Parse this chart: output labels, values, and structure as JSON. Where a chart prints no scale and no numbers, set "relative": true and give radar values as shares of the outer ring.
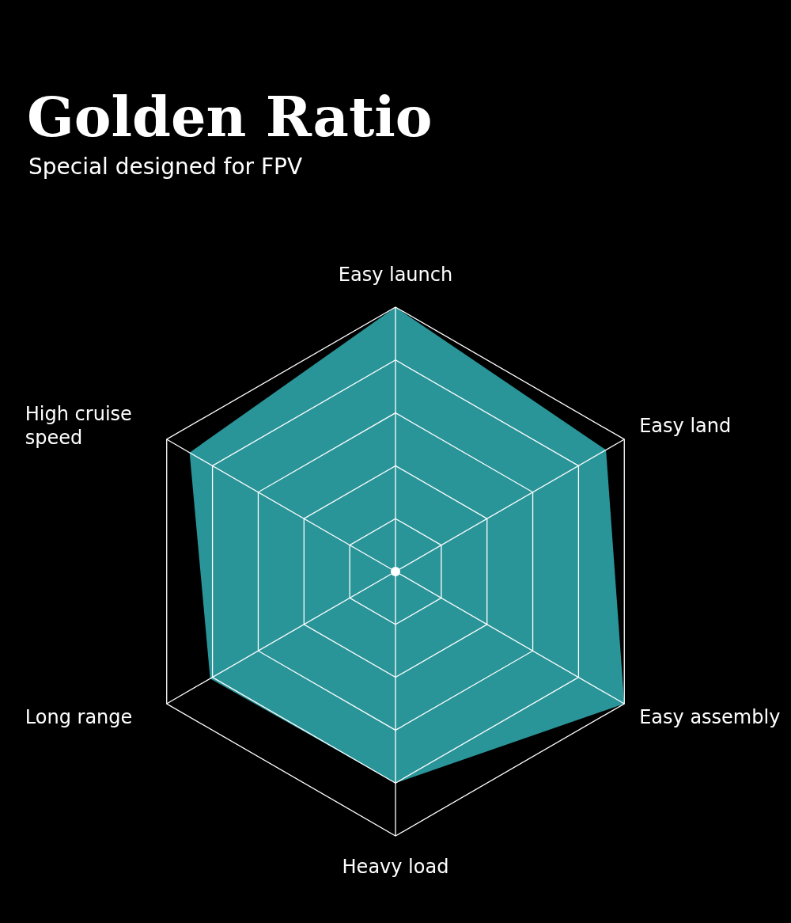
{
  "chart_data": {
    "type": "radar",
    "title": "Golden Ratio",
    "subtitle": "Special designed for FPV",
    "relative": true,
    "grid": true,
    "marker": "none",
    "categories": [
      "Easy launch",
      "Easy land",
      "Easy assembly",
      "Heavy load",
      "Long range",
      "High cruise speed"
    ],
    "series": [
      {
        "color": "#2a9599",
        "values": [
          1,
          0.92,
          1,
          0.8,
          0.81,
          0.9
        ]
      }
    ]
  }
}
